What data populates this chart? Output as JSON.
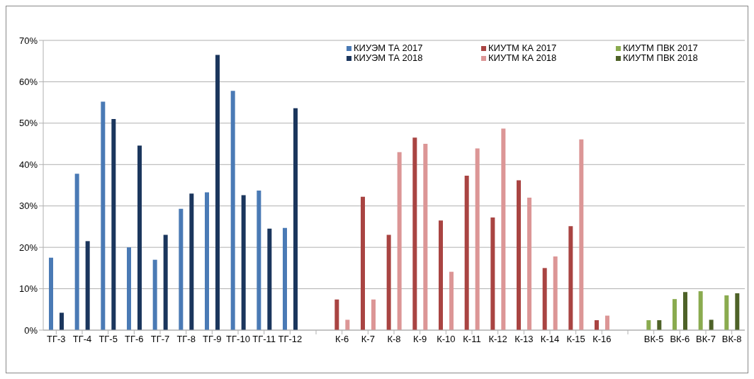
{
  "chart_data": {
    "type": "bar",
    "categories": [
      "ТГ-3",
      "ТГ-4",
      "ТГ-5",
      "ТГ-6",
      "ТГ-7",
      "ТГ-8",
      "ТГ-9",
      "ТГ-10",
      "ТГ-11",
      "ТГ-12",
      null,
      "К-6",
      "К-7",
      "К-8",
      "К-9",
      "К-10",
      "К-11",
      "К-12",
      "К-13",
      "К-14",
      "К-15",
      "К-16",
      null,
      "ВК-5",
      "ВК-6",
      "ВК-7",
      "ВК-8"
    ],
    "series": [
      {
        "name": "КИУЭМ ТА 2017",
        "color": "#4a7ab5",
        "values": [
          17.5,
          37.8,
          55.2,
          20.0,
          17.0,
          29.3,
          33.3,
          57.8,
          33.7,
          24.7,
          null,
          null,
          null,
          null,
          null,
          null,
          null,
          null,
          null,
          null,
          null,
          null,
          null,
          null,
          null,
          null,
          null
        ]
      },
      {
        "name": "КИУЭМ ТА 2018",
        "color": "#1b365d",
        "values": [
          4.2,
          21.5,
          51.0,
          44.6,
          23.0,
          33.0,
          66.5,
          32.6,
          24.5,
          53.6,
          null,
          null,
          null,
          null,
          null,
          null,
          null,
          null,
          null,
          null,
          null,
          null,
          null,
          null,
          null,
          null,
          null
        ]
      },
      {
        "name": "КИУТМ КА 2017",
        "color": "#a94442",
        "values": [
          null,
          null,
          null,
          null,
          null,
          null,
          null,
          null,
          null,
          null,
          null,
          7.4,
          32.2,
          23.0,
          46.5,
          26.5,
          37.3,
          27.2,
          36.2,
          15.0,
          25.1,
          2.4,
          null,
          null,
          null,
          null,
          null
        ]
      },
      {
        "name": "КИУТМ КА 2018",
        "color": "#dc9696",
        "values": [
          null,
          null,
          null,
          null,
          null,
          null,
          null,
          null,
          null,
          null,
          null,
          2.5,
          7.4,
          43.0,
          45.0,
          14.1,
          43.9,
          48.7,
          32.0,
          17.8,
          46.1,
          3.5,
          null,
          null,
          null,
          null,
          null
        ]
      },
      {
        "name": "КИУТМ ПВК 2017",
        "color": "#8aab4f",
        "values": [
          null,
          null,
          null,
          null,
          null,
          null,
          null,
          null,
          null,
          null,
          null,
          null,
          null,
          null,
          null,
          null,
          null,
          null,
          null,
          null,
          null,
          null,
          null,
          2.4,
          7.5,
          9.4,
          8.4
        ]
      },
      {
        "name": "КИУТМ ПВК 2018",
        "color": "#4e6228",
        "values": [
          null,
          null,
          null,
          null,
          null,
          null,
          null,
          null,
          null,
          null,
          null,
          null,
          null,
          null,
          null,
          null,
          null,
          null,
          null,
          null,
          null,
          null,
          null,
          2.4,
          9.2,
          2.5,
          8.9
        ]
      }
    ],
    "ylim": [
      0,
      70
    ],
    "yticks": [
      {
        "value": 0,
        "label": "0%"
      },
      {
        "value": 10,
        "label": "10%"
      },
      {
        "value": 20,
        "label": "20%"
      },
      {
        "value": 30,
        "label": "30%"
      },
      {
        "value": 40,
        "label": "40%"
      },
      {
        "value": 50,
        "label": "50%"
      },
      {
        "value": 60,
        "label": "60%"
      },
      {
        "value": 70,
        "label": "70%"
      }
    ],
    "grid": "y",
    "legend": "top right"
  }
}
